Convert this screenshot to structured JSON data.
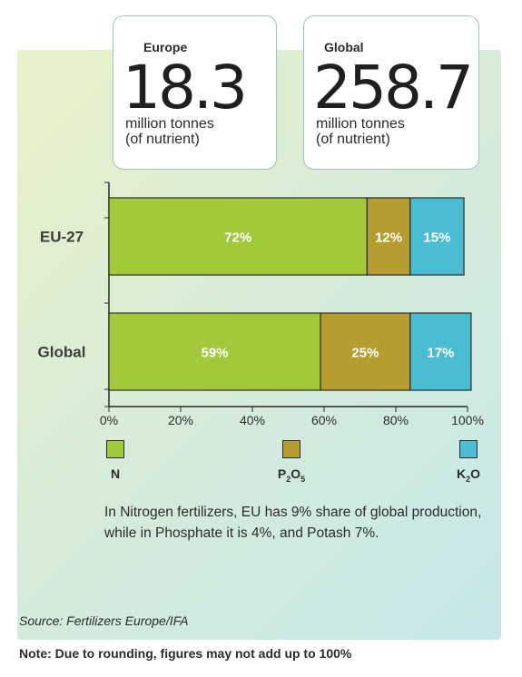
{
  "stats": [
    {
      "region": "Europe",
      "value": "18.3",
      "unit": "million tonnes",
      "unit_sub": "(of nutrient)"
    },
    {
      "region": "Global",
      "value": "258.7",
      "unit": "million tonnes",
      "unit_sub": "(of nutrient)"
    }
  ],
  "chart_data": {
    "type": "bar",
    "orientation": "horizontal",
    "stacked": true,
    "categories": [
      "EU-27",
      "Global"
    ],
    "series": [
      {
        "name": "N",
        "values": [
          72,
          59
        ],
        "labels": [
          "72%",
          "59%"
        ],
        "color": "#a2c93a"
      },
      {
        "name": "P2O5",
        "values": [
          12,
          25
        ],
        "labels": [
          "12%",
          "25%"
        ],
        "color": "#b59d2f"
      },
      {
        "name": "K2O",
        "values": [
          15,
          17
        ],
        "labels": [
          "15%",
          "17%"
        ],
        "color": "#4bbdd3"
      }
    ],
    "xlim": [
      0,
      100
    ],
    "x_ticks": [
      "0%",
      "20%",
      "40%",
      "60%",
      "80%",
      "100%"
    ],
    "grid": false,
    "legend": "bottom"
  },
  "legend": [
    {
      "key": "N",
      "base": "N",
      "parts": []
    },
    {
      "key": "P2O5",
      "base": "P",
      "parts": [
        {
          "sub": "2",
          "text": "O"
        },
        {
          "sub": "5",
          "text": ""
        }
      ]
    },
    {
      "key": "K2O",
      "base": "K",
      "parts": [
        {
          "sub": "2",
          "text": "O"
        }
      ]
    }
  ],
  "note": "In Nitrogen fertilizers, EU has 9% share of global production, while in Phosphate it is 4%, and Potash 7%.",
  "source": "Source: Fertilizers Europe/IFA",
  "footnote": "Note: Due to rounding, figures may not add up to 100%"
}
